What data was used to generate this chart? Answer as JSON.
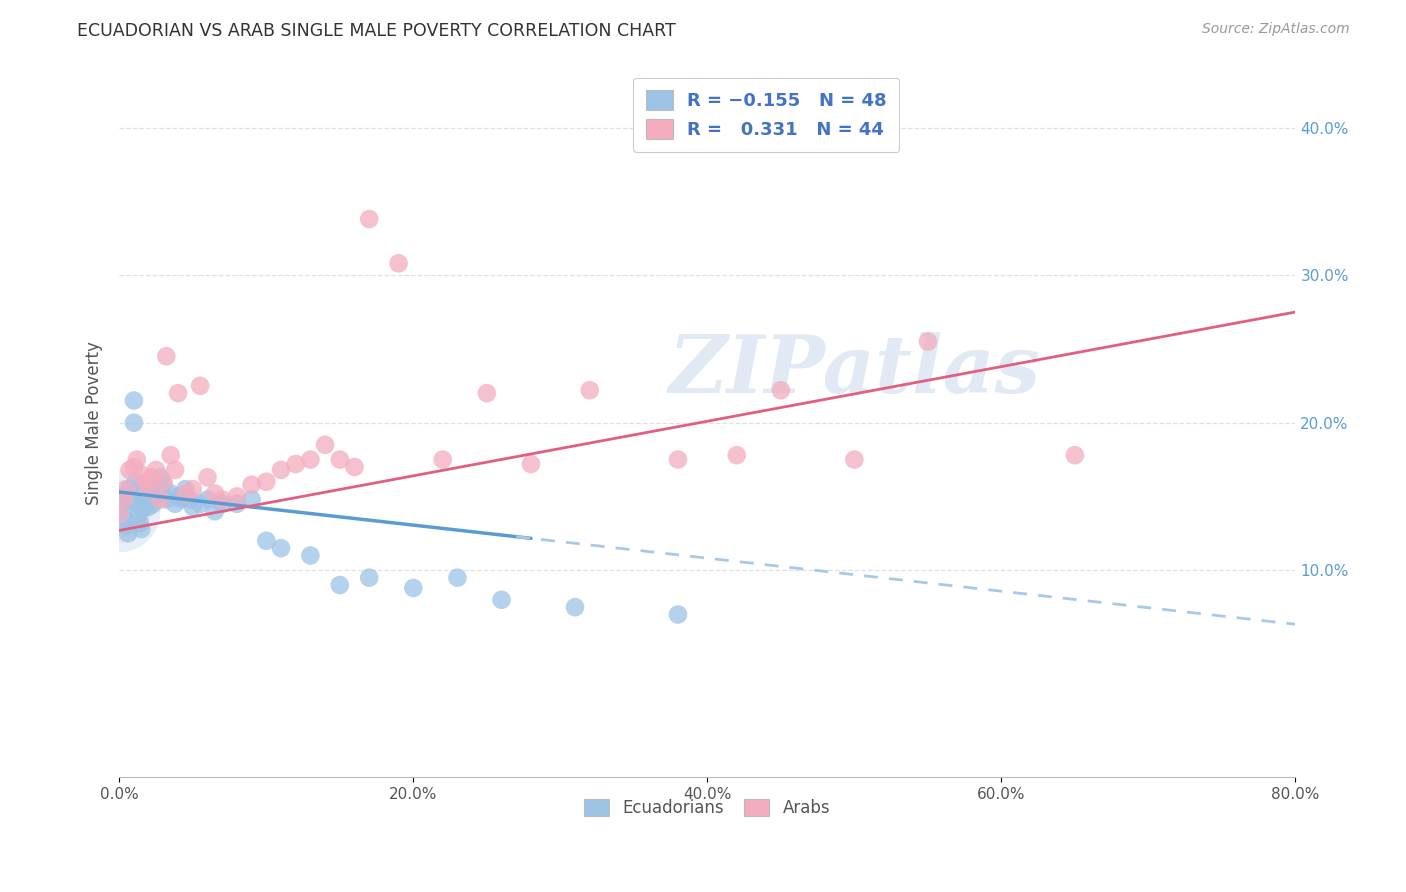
{
  "title": "ECUADORIAN VS ARAB SINGLE MALE POVERTY CORRELATION CHART",
  "source": "Source: ZipAtlas.com",
  "ylabel": "Single Male Poverty",
  "xlim": [
    0.0,
    0.8
  ],
  "ylim": [
    -0.04,
    0.44
  ],
  "ecuadorian_R": -0.155,
  "ecuadorian_N": 48,
  "arab_R": 0.331,
  "arab_N": 44,
  "ecuadorian_color": "#9DC3E6",
  "arab_color": "#F4ACBE",
  "trendline_blue_solid": "#5B9BD5",
  "trendline_pink_solid": "#E06080",
  "trendline_blue_dashed_color": "#A9C8E8",
  "background_color": "#FFFFFF",
  "grid_color": "#DDDDDD",
  "right_tick_color": "#5B9BD5",
  "ecuadorians_x": [
    0.0,
    0.002,
    0.003,
    0.004,
    0.005,
    0.006,
    0.007,
    0.008,
    0.01,
    0.01,
    0.011,
    0.012,
    0.013,
    0.014,
    0.015,
    0.016,
    0.018,
    0.019,
    0.02,
    0.022,
    0.023,
    0.025,
    0.028,
    0.03,
    0.032,
    0.035,
    0.038,
    0.04,
    0.042,
    0.045,
    0.048,
    0.05,
    0.055,
    0.06,
    0.065,
    0.07,
    0.08,
    0.09,
    0.1,
    0.11,
    0.13,
    0.15,
    0.17,
    0.2,
    0.23,
    0.26,
    0.31,
    0.38
  ],
  "ecuadorians_y": [
    0.14,
    0.145,
    0.15,
    0.135,
    0.13,
    0.125,
    0.155,
    0.148,
    0.2,
    0.215,
    0.16,
    0.145,
    0.138,
    0.132,
    0.128,
    0.142,
    0.155,
    0.148,
    0.143,
    0.155,
    0.145,
    0.15,
    0.163,
    0.158,
    0.148,
    0.152,
    0.145,
    0.15,
    0.148,
    0.155,
    0.148,
    0.143,
    0.145,
    0.148,
    0.14,
    0.145,
    0.145,
    0.148,
    0.12,
    0.115,
    0.11,
    0.09,
    0.095,
    0.088,
    0.095,
    0.08,
    0.075,
    0.07
  ],
  "arabs_x": [
    0.0,
    0.003,
    0.005,
    0.007,
    0.01,
    0.012,
    0.015,
    0.018,
    0.02,
    0.022,
    0.025,
    0.028,
    0.03,
    0.032,
    0.035,
    0.038,
    0.04,
    0.045,
    0.05,
    0.055,
    0.06,
    0.065,
    0.07,
    0.08,
    0.09,
    0.1,
    0.11,
    0.12,
    0.13,
    0.14,
    0.15,
    0.16,
    0.17,
    0.19,
    0.22,
    0.25,
    0.28,
    0.32,
    0.38,
    0.42,
    0.45,
    0.5,
    0.55,
    0.65
  ],
  "arabs_y": [
    0.138,
    0.148,
    0.155,
    0.168,
    0.17,
    0.175,
    0.165,
    0.16,
    0.155,
    0.163,
    0.168,
    0.148,
    0.16,
    0.245,
    0.178,
    0.168,
    0.22,
    0.152,
    0.155,
    0.225,
    0.163,
    0.152,
    0.148,
    0.15,
    0.158,
    0.16,
    0.168,
    0.172,
    0.175,
    0.185,
    0.175,
    0.17,
    0.338,
    0.308,
    0.175,
    0.22,
    0.172,
    0.222,
    0.175,
    0.178,
    0.222,
    0.175,
    0.255,
    0.178
  ],
  "eq_line_x_solid_end": 0.28,
  "eq_line_intercept": 0.153,
  "eq_line_slope": -0.112,
  "ar_line_intercept": 0.127,
  "ar_line_slope": 0.185
}
